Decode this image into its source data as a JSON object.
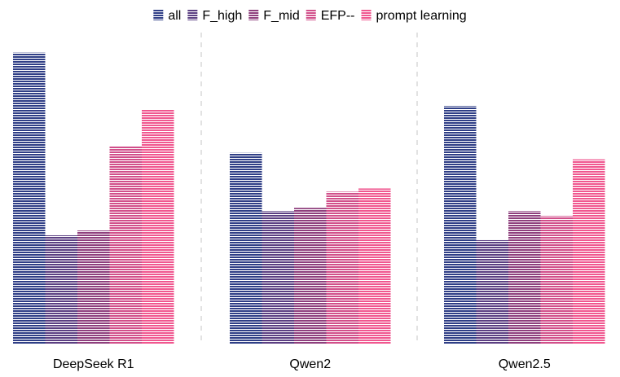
{
  "chart_data": {
    "type": "bar",
    "categories": [
      "DeepSeek R1",
      "Qwen2",
      "Qwen2.5"
    ],
    "series": [
      {
        "name": "all",
        "values": [
          0.9,
          0.59,
          0.735
        ],
        "color": "#2f3e86"
      },
      {
        "name": "F_high",
        "values": [
          0.335,
          0.41,
          0.32
        ],
        "color": "#5b3f82"
      },
      {
        "name": "F_mid",
        "values": [
          0.35,
          0.42,
          0.41
        ],
        "color": "#8e3f7d"
      },
      {
        "name": "EFP--",
        "values": [
          0.61,
          0.47,
          0.395
        ],
        "color": "#d14f8a"
      },
      {
        "name": "prompt learning",
        "values": [
          0.725,
          0.48,
          0.57
        ],
        "color": "#f0578f"
      }
    ],
    "ylim": [
      0,
      1
    ],
    "legend_position": "top",
    "grid": false,
    "group_separators": "dashed",
    "bar_fill": "horizontal-stripes"
  }
}
